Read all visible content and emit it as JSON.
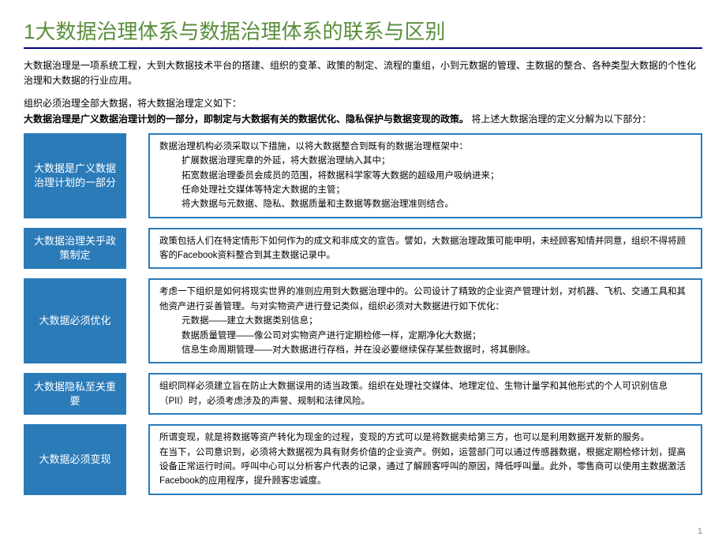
{
  "title": "1大数据治理体系与数据治理体系的联系与区别",
  "intro": "大数据治理是一项系统工程，大到大数据技术平台的搭建、组织的变革、政策的制定、流程的重组，小到元数据的管理、主数据的整合、各种类型大数据的个性化治理和大数据的行业应用。",
  "def_prefix": "组织必须治理全部大数据，将大数据治理定义如下：",
  "def_bold": "大数据治理是广义数据治理计划的一部分，即制定与大数据有关的数据优化、隐私保护与数据变现的政策。",
  "def_suffix": " 将上述大数据治理的定义分解为以下部分：",
  "rows": [
    {
      "label": "大数据是广义数据治理计划的一部分",
      "lines": [
        "数据治理机构必须采取以下措施，以将大数据整合到既有的数据治理框架中：",
        "扩展数据治理宪章的外延，将大数据治理纳入其中；",
        "拓宽数据治理委员会成员的范围，将数据科学家等大数据的超级用户吸纳进来；",
        "任命处理社交媒体等特定大数据的主管；",
        "将大数据与元数据、隐私、数据质量和主数据等数据治理准则结合。"
      ],
      "indented": [
        1,
        2,
        3,
        4
      ]
    },
    {
      "label": "大数据治理关乎政策制定",
      "lines": [
        "政策包括人们在特定情形下如何作为的成文和非成文的宣告。譬如，大数据治理政策可能申明，未经顾客知情并同意，组织不得将顾客的Facebook资料整合到其主数据记录中。"
      ],
      "indented": []
    },
    {
      "label": "大数据必须优化",
      "lines": [
        "考虑一下组织是如何将现实世界的准则应用到大数据治理中的。公司设计了精致的企业资产管理计划，对机器、飞机、交通工具和其他资产进行妥善管理。与对实物资产进行登记类似，组织必须对大数据进行如下优化：",
        "元数据——建立大数据类别信息；",
        "数据质量管理——像公司对实物资产进行定期检修一样，定期净化大数据；",
        "信息生命周期管理——对大数据进行存档，并在没必要继续保存某些数据时，将其删除。"
      ],
      "indented": [
        1,
        2,
        3
      ]
    },
    {
      "label": "大数据隐私至关重要",
      "lines": [
        "组织同样必须建立旨在防止大数据误用的适当政策。组织在处理社交媒体、地理定位、生物计量学和其他形式的个人可识别信息（PII）时，必须考虑涉及的声誉、规制和法律风险。"
      ],
      "indented": []
    },
    {
      "label": "大数据必须变现",
      "lines": [
        "所谓变现，就是将数据等资产转化为现金的过程，变现的方式可以是将数据卖给第三方，也可以是利用数据开发新的服务。",
        "在当下，公司意识到，必须将大数据视为具有财务价值的企业资产。例如，运营部门可以通过传感器数据，根据定期检修计划，提高设备正常运行时间。呼叫中心可以分析客户代表的记录，通过了解顾客呼叫的原因，降低呼叫量。此外，零售商可以使用主数据激活Facebook的应用程序，提升顾客忠诚度。"
      ],
      "indented": []
    }
  ],
  "colors": {
    "title": "#5a8e3a",
    "underline": "#000080",
    "label_bg": "#2b7bb9",
    "label_fg": "#ffffff",
    "content_border": "#2b7bb9"
  },
  "page_number": "1"
}
